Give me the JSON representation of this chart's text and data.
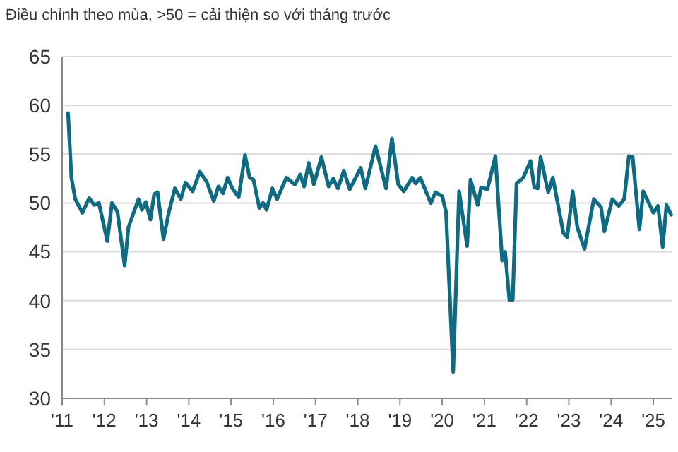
{
  "chart_data": {
    "type": "line",
    "title": "Điều chỉnh theo mùa, >50 = cải thiện so với tháng trước",
    "xlim": [
      2011,
      2025.45
    ],
    "ylim": [
      30,
      65
    ],
    "yticks": [
      30,
      35,
      40,
      45,
      50,
      55,
      60,
      65
    ],
    "xticks": [
      {
        "value": 2011,
        "label": "'11"
      },
      {
        "value": 2012,
        "label": "'12"
      },
      {
        "value": 2013,
        "label": "'13"
      },
      {
        "value": 2014,
        "label": "'14"
      },
      {
        "value": 2015,
        "label": "'15"
      },
      {
        "value": 2016,
        "label": "'16"
      },
      {
        "value": 2017,
        "label": "'17"
      },
      {
        "value": 2018,
        "label": "'18"
      },
      {
        "value": 2019,
        "label": "'19"
      },
      {
        "value": 2020,
        "label": "'20"
      },
      {
        "value": 2021,
        "label": "'21"
      },
      {
        "value": 2022,
        "label": "'22"
      },
      {
        "value": 2023,
        "label": "'23"
      },
      {
        "value": 2024,
        "label": "'24"
      },
      {
        "value": 2025,
        "label": "'25"
      }
    ],
    "grid": "y",
    "marker": "none",
    "line_style": "solid",
    "series": [
      {
        "color": "#0e6b82",
        "x": [
          2011.14,
          2011.22,
          2011.31,
          2011.48,
          2011.64,
          2011.76,
          2011.87,
          2012.07,
          2012.18,
          2012.31,
          2012.48,
          2012.57,
          2012.7,
          2012.81,
          2012.89,
          2012.98,
          2013.09,
          2013.18,
          2013.26,
          2013.4,
          2013.53,
          2013.67,
          2013.81,
          2013.92,
          2014.09,
          2014.26,
          2014.42,
          2014.59,
          2014.7,
          2014.81,
          2014.92,
          2015.03,
          2015.18,
          2015.33,
          2015.44,
          2015.53,
          2015.67,
          2015.76,
          2015.84,
          2015.98,
          2016.09,
          2016.31,
          2016.51,
          2016.64,
          2016.73,
          2016.84,
          2016.96,
          2017.14,
          2017.31,
          2017.42,
          2017.53,
          2017.67,
          2017.81,
          2018.07,
          2018.18,
          2018.42,
          2018.67,
          2018.81,
          2018.96,
          2019.09,
          2019.29,
          2019.37,
          2019.48,
          2019.73,
          2019.84,
          2020.0,
          2020.09,
          2020.26,
          2020.4,
          2020.59,
          2020.67,
          2020.84,
          2020.92,
          2021.07,
          2021.26,
          2021.42,
          2021.49,
          2021.59,
          2021.67,
          2021.76,
          2021.92,
          2022.09,
          2022.18,
          2022.26,
          2022.33,
          2022.51,
          2022.62,
          2022.87,
          2022.96,
          2023.09,
          2023.2,
          2023.37,
          2023.59,
          2023.76,
          2023.84,
          2024.03,
          2024.18,
          2024.31,
          2024.42,
          2024.51,
          2024.67,
          2024.76,
          2025.0,
          2025.11,
          2025.22,
          2025.31,
          2025.42
        ],
        "values": [
          59.2,
          52.6,
          50.4,
          49.0,
          50.5,
          49.8,
          50.0,
          46.1,
          50.0,
          49.1,
          43.6,
          47.5,
          49.1,
          50.4,
          49.3,
          50.1,
          48.3,
          50.9,
          51.1,
          46.3,
          49.1,
          51.5,
          50.4,
          52.1,
          51.2,
          53.2,
          52.2,
          50.2,
          51.7,
          51.0,
          52.6,
          51.5,
          50.6,
          54.9,
          52.6,
          52.4,
          49.5,
          50.0,
          49.3,
          51.5,
          50.4,
          52.6,
          51.9,
          52.9,
          51.7,
          54.1,
          51.9,
          54.7,
          51.7,
          52.5,
          51.5,
          53.3,
          51.4,
          53.6,
          51.5,
          55.8,
          51.5,
          56.6,
          51.9,
          51.2,
          52.6,
          52.0,
          52.6,
          50.0,
          51.1,
          50.7,
          49.1,
          32.7,
          51.2,
          45.6,
          52.4,
          49.8,
          51.6,
          51.4,
          54.8,
          44.1,
          45.0,
          40.1,
          40.1,
          52.0,
          52.6,
          54.3,
          51.6,
          51.5,
          54.7,
          51.1,
          52.6,
          46.9,
          46.5,
          51.2,
          47.5,
          45.3,
          50.4,
          49.6,
          47.1,
          50.4,
          49.7,
          50.4,
          54.8,
          54.7,
          47.3,
          51.2,
          49.0,
          49.7,
          45.5,
          49.8,
          48.8
        ]
      }
    ]
  }
}
